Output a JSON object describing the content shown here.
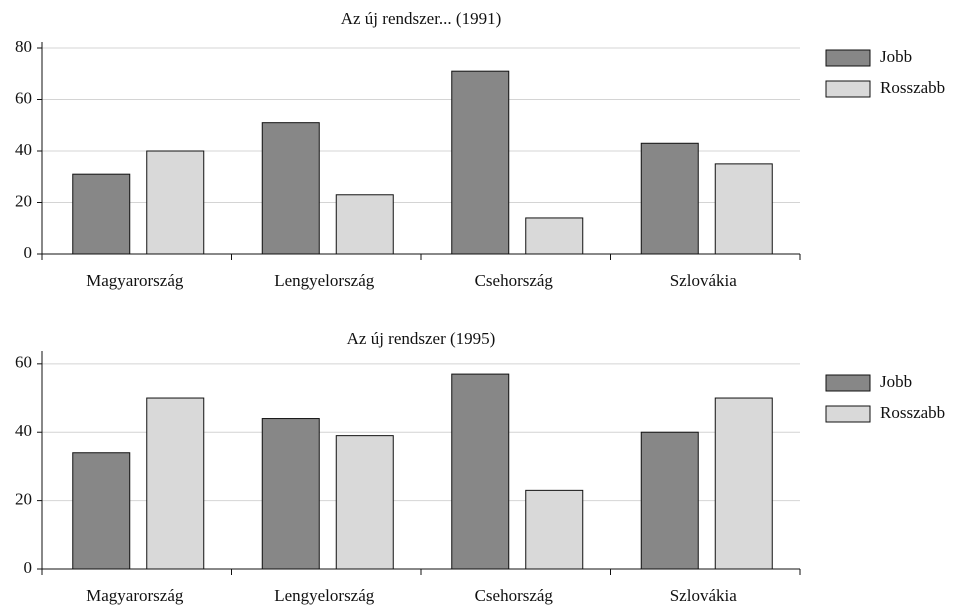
{
  "chart_data": [
    {
      "type": "bar",
      "title": "Az új rendszer... (1991)",
      "categories": [
        "Magyarország",
        "Lengyelország",
        "Csehország",
        "Szlovákia"
      ],
      "series": [
        {
          "name": "Jobb",
          "color": "#878787",
          "values": [
            31,
            51,
            71,
            43
          ]
        },
        {
          "name": "Rosszabb",
          "color": "#d9d9d9",
          "values": [
            40,
            23,
            14,
            35
          ]
        }
      ],
      "ylim": [
        0,
        80
      ],
      "yticks": [
        0,
        20,
        40,
        60,
        80
      ],
      "grid": true,
      "legend": "right"
    },
    {
      "type": "bar",
      "title": "Az új rendszer (1995)",
      "categories": [
        "Magyarország",
        "Lengyelország",
        "Csehország",
        "Szlovákia"
      ],
      "series": [
        {
          "name": "Jobb",
          "color": "#878787",
          "values": [
            34,
            44,
            57,
            40
          ]
        },
        {
          "name": "Rosszabb",
          "color": "#d9d9d9",
          "values": [
            50,
            39,
            23,
            50
          ]
        }
      ],
      "ylim": [
        0,
        62
      ],
      "yticks": [
        0,
        20,
        40,
        60
      ],
      "grid": true,
      "legend": "right"
    }
  ]
}
